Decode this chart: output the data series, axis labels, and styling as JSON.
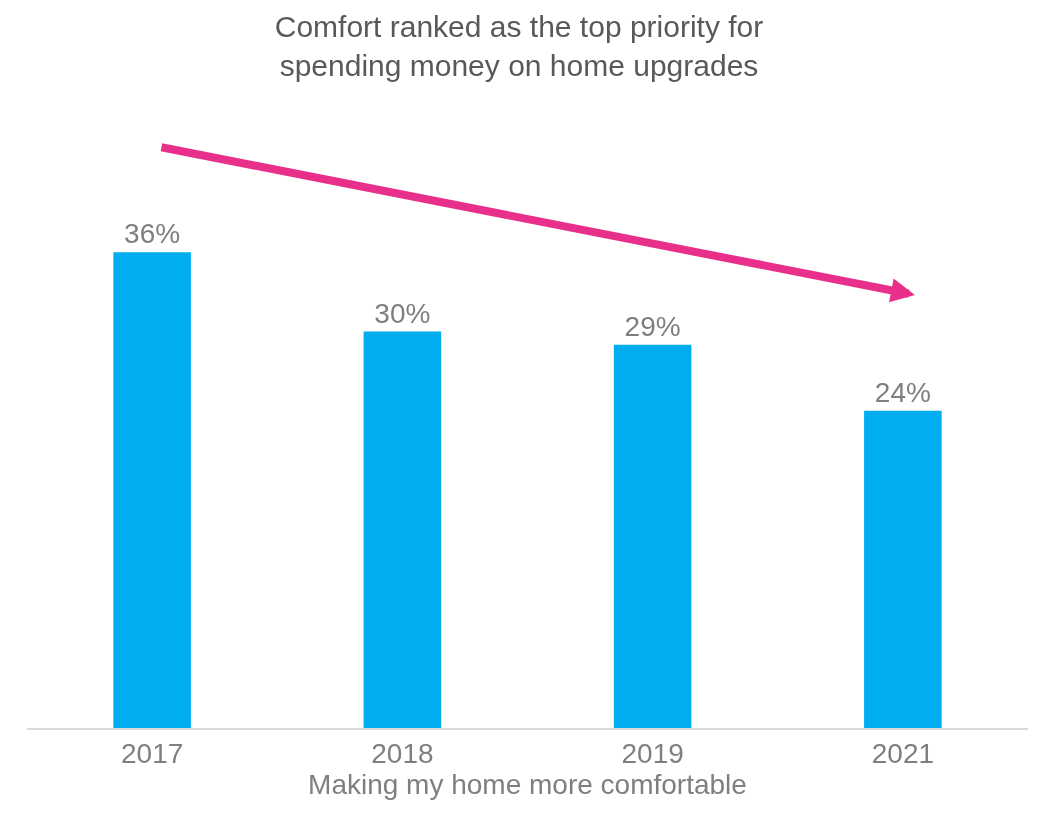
{
  "chart_data": {
    "type": "bar",
    "title": "Comfort ranked as the top priority for\nspending money on home upgrades",
    "categories": [
      "2017",
      "2018",
      "2019",
      "2021"
    ],
    "values": [
      36,
      30,
      29,
      24
    ],
    "value_labels": [
      "36%",
      "30%",
      "29%",
      "24%"
    ],
    "color": "#00aeef",
    "xlabel": "Making my home more comfortable",
    "tick_labels": "x"
  }
}
